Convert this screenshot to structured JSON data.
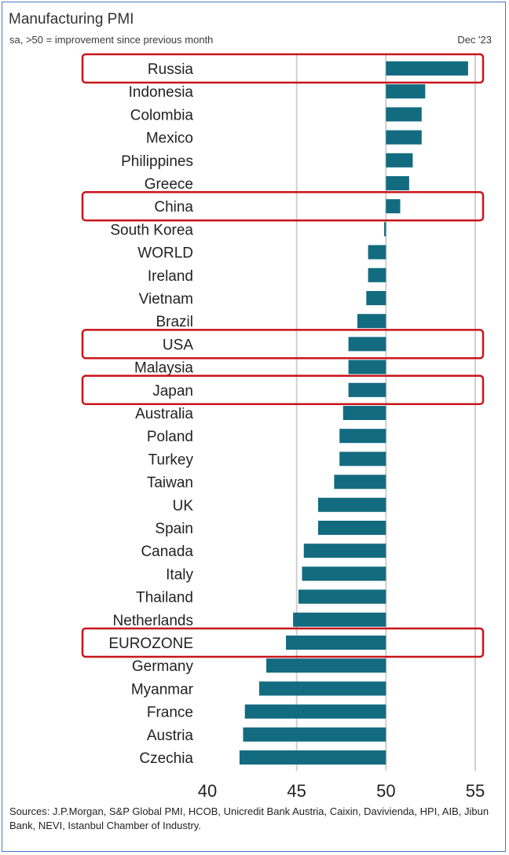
{
  "header": {
    "title": "Manufacturing PMI",
    "subtitle": "sa, >50 = improvement since previous month",
    "date": "Dec '23"
  },
  "footer": {
    "sources": "Sources: J.P.Morgan, S&P Global PMI, HCOB, Unicredit Bank Austria, Caixin, Davivienda, HPI, AIB, Jibun Bank, NEVI, Istanbul Chamber of Industry."
  },
  "chart_data": {
    "type": "bar",
    "orientation": "horizontal",
    "baseline": 50,
    "xlim": [
      40,
      55
    ],
    "xticks": [
      40,
      45,
      50,
      55
    ],
    "grid": true,
    "bar_color": "#136b80",
    "highlight_color": "#c8151b",
    "categories": [
      "Russia",
      "Indonesia",
      "Colombia",
      "Mexico",
      "Philippines",
      "Greece",
      "China",
      "South Korea",
      "WORLD",
      "Ireland",
      "Vietnam",
      "Brazil",
      "USA",
      "Malaysia",
      "Japan",
      "Australia",
      "Poland",
      "Turkey",
      "Taiwan",
      "UK",
      "Spain",
      "Canada",
      "Italy",
      "Thailand",
      "Netherlands",
      "EUROZONE",
      "Germany",
      "Myanmar",
      "France",
      "Austria",
      "Czechia"
    ],
    "values": [
      54.6,
      52.2,
      52.0,
      52.0,
      51.5,
      51.3,
      50.8,
      49.9,
      49.0,
      49.0,
      48.9,
      48.4,
      47.9,
      47.9,
      47.9,
      47.6,
      47.4,
      47.4,
      47.1,
      46.2,
      46.2,
      45.4,
      45.3,
      45.1,
      44.8,
      44.4,
      43.3,
      42.9,
      42.1,
      42.0,
      41.8
    ],
    "highlighted": [
      "Russia",
      "China",
      "USA",
      "Japan",
      "EUROZONE"
    ]
  }
}
